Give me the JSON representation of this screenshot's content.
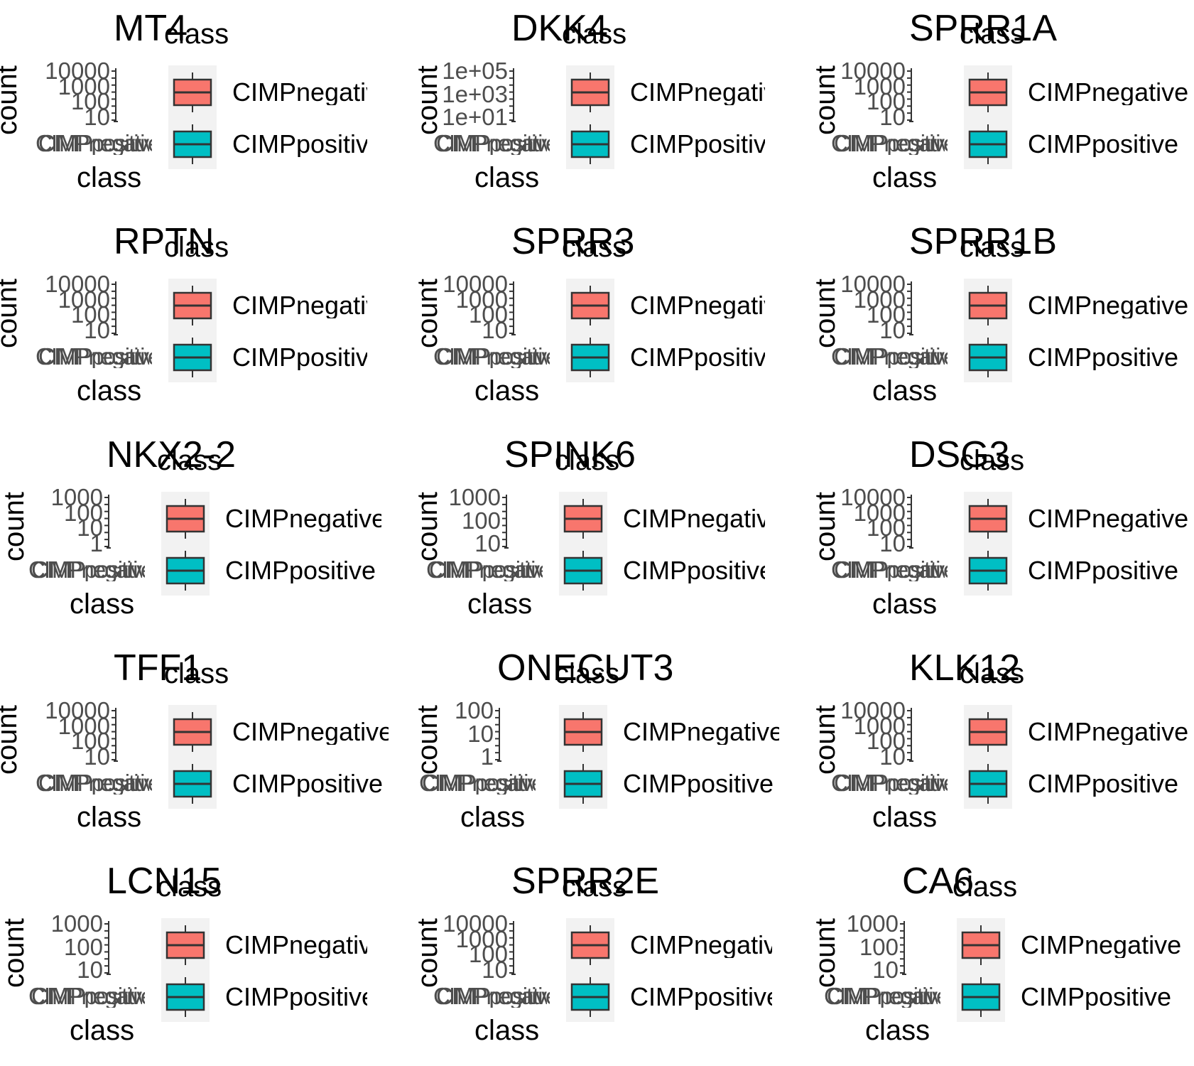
{
  "colors": {
    "negative": "#F8766D",
    "positive": "#00BFC4",
    "legend_bg": "#F2F2F2",
    "tick_text": "#4D4D4D"
  },
  "common": {
    "xlabel": "class",
    "ylabel": "count",
    "legend_title": "class",
    "legend_items": [
      "CIMPnegative",
      "CIMPpositive"
    ],
    "x_tick_labels": [
      "CIMPnegative",
      "CIMPpositive"
    ]
  },
  "chart_data": [
    {
      "type": "box",
      "title": "MT4",
      "yscale": "log10",
      "yticks": [
        "10000",
        "1000",
        "100",
        "10"
      ],
      "ylabel": "count",
      "xlabel": "class",
      "legend_title": "class",
      "legend_items": [
        "CIMPnegative",
        "CIMPpositive"
      ]
    },
    {
      "type": "box",
      "title": "DKK4",
      "yscale": "log10",
      "yticks": [
        "1e+05",
        "1e+03",
        "1e+01"
      ],
      "ylabel": "count",
      "xlabel": "class",
      "legend_title": "class",
      "legend_items": [
        "CIMPnegative",
        "CIMPpositive"
      ]
    },
    {
      "type": "box",
      "title": "SPRR1A",
      "yscale": "log10",
      "yticks": [
        "10000",
        "1000",
        "100",
        "10"
      ],
      "ylabel": "count",
      "xlabel": "class",
      "legend_title": "class",
      "legend_items": [
        "CIMPnegative",
        "CIMPpositive"
      ]
    },
    {
      "type": "box",
      "title": "RPTN",
      "yscale": "log10",
      "yticks": [
        "10000",
        "1000",
        "100",
        "10"
      ],
      "ylabel": "count",
      "xlabel": "class",
      "legend_title": "class",
      "legend_items": [
        "CIMPnegative",
        "CIMPpositive"
      ]
    },
    {
      "type": "box",
      "title": "SPRR3",
      "yscale": "log10",
      "yticks": [
        "10000",
        "1000",
        "100",
        "10"
      ],
      "ylabel": "count",
      "xlabel": "class",
      "legend_title": "class",
      "legend_items": [
        "CIMPnegative",
        "CIMPpositive"
      ]
    },
    {
      "type": "box",
      "title": "SPRR1B",
      "yscale": "log10",
      "yticks": [
        "10000",
        "1000",
        "100",
        "10"
      ],
      "ylabel": "count",
      "xlabel": "class",
      "legend_title": "class",
      "legend_items": [
        "CIMPnegative",
        "CIMPpositive"
      ]
    },
    {
      "type": "box",
      "title": "NKX2-2",
      "yscale": "log10",
      "yticks": [
        "1000",
        "100",
        "10",
        "1"
      ],
      "ylabel": "count",
      "xlabel": "class",
      "legend_title": "class",
      "legend_items": [
        "CIMPnegative",
        "CIMPpositive"
      ]
    },
    {
      "type": "box",
      "title": "SPINK6",
      "yscale": "log10",
      "yticks": [
        "1000",
        "100",
        "10"
      ],
      "ylabel": "count",
      "xlabel": "class",
      "legend_title": "class",
      "legend_items": [
        "CIMPnegative",
        "CIMPpositive"
      ]
    },
    {
      "type": "box",
      "title": "DSG3",
      "yscale": "log10",
      "yticks": [
        "10000",
        "1000",
        "100",
        "10"
      ],
      "ylabel": "count",
      "xlabel": "class",
      "legend_title": "class",
      "legend_items": [
        "CIMPnegative",
        "CIMPpositive"
      ]
    },
    {
      "type": "box",
      "title": "TFF1",
      "yscale": "log10",
      "yticks": [
        "10000",
        "1000",
        "100",
        "10"
      ],
      "ylabel": "count",
      "xlabel": "class",
      "legend_title": "class",
      "legend_items": [
        "CIMPnegative",
        "CIMPpositive"
      ]
    },
    {
      "type": "box",
      "title": "ONECUT3",
      "yscale": "log10",
      "yticks": [
        "100",
        "10",
        "1"
      ],
      "ylabel": "count",
      "xlabel": "class",
      "legend_title": "class",
      "legend_items": [
        "CIMPnegative",
        "CIMPpositive"
      ]
    },
    {
      "type": "box",
      "title": "KLK12",
      "yscale": "log10",
      "yticks": [
        "10000",
        "1000",
        "100",
        "10"
      ],
      "ylabel": "count",
      "xlabel": "class",
      "legend_title": "class",
      "legend_items": [
        "CIMPnegative",
        "CIMPpositive"
      ]
    },
    {
      "type": "box",
      "title": "LCN15",
      "yscale": "log10",
      "yticks": [
        "1000",
        "100",
        "10"
      ],
      "ylabel": "count",
      "xlabel": "class",
      "legend_title": "class",
      "legend_items": [
        "CIMPnegative",
        "CIMPpositive"
      ]
    },
    {
      "type": "box",
      "title": "SPRR2E",
      "yscale": "log10",
      "yticks": [
        "10000",
        "1000",
        "100",
        "10"
      ],
      "ylabel": "count",
      "xlabel": "class",
      "legend_title": "class",
      "legend_items": [
        "CIMPnegative",
        "CIMPpositive"
      ]
    },
    {
      "type": "box",
      "title": "CA6",
      "yscale": "log10",
      "yticks": [
        "1000",
        "100",
        "10"
      ],
      "ylabel": "count",
      "xlabel": "class",
      "legend_title": "class",
      "legend_items": [
        "CIMPnegative",
        "CIMPpositive"
      ]
    }
  ]
}
